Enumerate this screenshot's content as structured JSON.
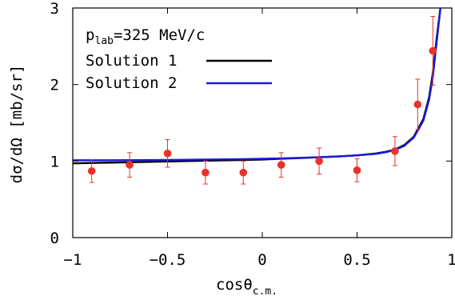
{
  "chart_data": {
    "type": "scatter",
    "annotation": {
      "prefix": "p",
      "subscript": "lab",
      "suffix": "=325 MeV/c"
    },
    "xlabel": {
      "main": "cosθ",
      "subscript": "c.m."
    },
    "ylabel": "dσ/dΩ [mb/sr]",
    "xlim": [
      -1,
      1
    ],
    "ylim": [
      0,
      3
    ],
    "xticks": [
      -1,
      -0.5,
      0,
      0.5,
      1
    ],
    "xtick_labels": [
      "−1",
      "−0.5",
      "0",
      "0.5",
      "1"
    ],
    "yticks": [
      0,
      1,
      2,
      3
    ],
    "ytick_labels": [
      "0",
      "1",
      "2",
      "3"
    ],
    "grid": false,
    "legend_position": "top-left",
    "series": [
      {
        "name": "Solution 1",
        "kind": "line",
        "color": "#000000",
        "x": [
          -1.0,
          -0.9,
          -0.8,
          -0.7,
          -0.6,
          -0.5,
          -0.4,
          -0.3,
          -0.2,
          -0.1,
          0.0,
          0.1,
          0.2,
          0.3,
          0.4,
          0.5,
          0.6,
          0.65,
          0.7,
          0.75,
          0.8,
          0.85,
          0.88,
          0.9,
          0.92,
          0.94
        ],
        "y": [
          0.97,
          0.975,
          0.98,
          0.985,
          0.99,
          0.995,
          1.0,
          1.005,
          1.01,
          1.015,
          1.02,
          1.03,
          1.04,
          1.05,
          1.06,
          1.075,
          1.1,
          1.12,
          1.15,
          1.21,
          1.32,
          1.55,
          1.83,
          2.15,
          2.6,
          3.0
        ]
      },
      {
        "name": "Solution 2",
        "kind": "line",
        "color": "#1a1ad6",
        "x": [
          -1.0,
          -0.9,
          -0.8,
          -0.7,
          -0.6,
          -0.5,
          -0.4,
          -0.3,
          -0.2,
          -0.1,
          0.0,
          0.1,
          0.2,
          0.3,
          0.4,
          0.5,
          0.6,
          0.65,
          0.7,
          0.75,
          0.8,
          0.85,
          0.88,
          0.9,
          0.92,
          0.94
        ],
        "y": [
          1.01,
          1.01,
          1.01,
          1.012,
          1.013,
          1.015,
          1.017,
          1.02,
          1.022,
          1.025,
          1.03,
          1.035,
          1.042,
          1.05,
          1.06,
          1.075,
          1.095,
          1.115,
          1.145,
          1.2,
          1.31,
          1.53,
          1.8,
          2.1,
          2.55,
          3.0
        ]
      },
      {
        "name": "",
        "kind": "points",
        "color": "#e8322a",
        "x": [
          -0.9,
          -0.7,
          -0.5,
          -0.3,
          -0.1,
          0.1,
          0.3,
          0.5,
          0.7,
          0.82,
          0.9
        ],
        "y": [
          0.87,
          0.95,
          1.1,
          0.85,
          0.85,
          0.95,
          1.0,
          0.88,
          1.13,
          1.74,
          2.44
        ],
        "err": [
          0.15,
          0.16,
          0.18,
          0.15,
          0.15,
          0.16,
          0.17,
          0.15,
          0.19,
          0.33,
          0.45
        ]
      }
    ]
  }
}
